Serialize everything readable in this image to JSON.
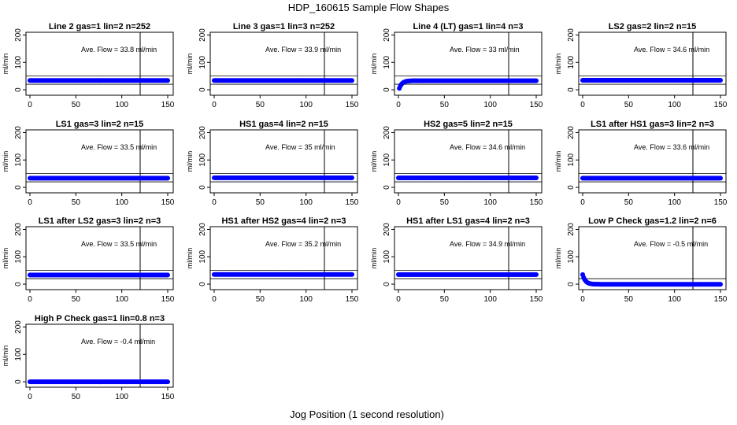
{
  "title": "HDP_160615  Sample Flow Shapes",
  "xlabel": "Jog Position (1 second resolution)",
  "colors": {
    "point": "#0000ff",
    "line": "#000000"
  },
  "chart_data": [
    {
      "type": "scatter",
      "title": "Line 2 gas=1 lin=2 n=252",
      "ylabel": "ml/min",
      "annotation": "Ave. Flow =  33.8   ml/min",
      "xlim": [
        0,
        150
      ],
      "ylim": [
        -20,
        210
      ],
      "xticks": [
        0,
        50,
        100,
        150
      ],
      "yticks": [
        0,
        100,
        200
      ],
      "vline_x": 120,
      "hline_y": [
        50,
        20
      ],
      "start_value": 33.8,
      "end_value": 33.8,
      "x_start": 0,
      "x_end": 150
    },
    {
      "type": "scatter",
      "title": "Line 3 gas=1 lin=3 n=252",
      "ylabel": "ml/min",
      "annotation": "Ave. Flow =  33.9   ml/min",
      "xlim": [
        0,
        150
      ],
      "ylim": [
        -20,
        210
      ],
      "xticks": [
        0,
        50,
        100,
        150
      ],
      "yticks": [
        0,
        100,
        200
      ],
      "vline_x": 120,
      "hline_y": [
        50,
        20
      ],
      "start_value": 33.9,
      "end_value": 33.9,
      "x_start": 0,
      "x_end": 150
    },
    {
      "type": "scatter",
      "title": "Line 4 (LT) gas=1 lin=4 n=3",
      "ylabel": "ml/min",
      "annotation": "Ave. Flow =  33   ml/min",
      "xlim": [
        0,
        150
      ],
      "ylim": [
        -20,
        210
      ],
      "xticks": [
        0,
        50,
        100,
        150
      ],
      "yticks": [
        0,
        100,
        200
      ],
      "vline_x": 120,
      "hline_y": [
        50,
        20
      ],
      "start_value": 5,
      "end_value": 33,
      "x_start": 1,
      "x_end": 150
    },
    {
      "type": "scatter",
      "title": "LS2 gas=2 lin=2 n=15",
      "ylabel": "ml/min",
      "annotation": "Ave. Flow =  34.6   ml/min",
      "xlim": [
        0,
        150
      ],
      "ylim": [
        -20,
        210
      ],
      "xticks": [
        0,
        50,
        100,
        150
      ],
      "yticks": [
        0,
        100,
        200
      ],
      "vline_x": 120,
      "hline_y": [
        50,
        20
      ],
      "start_value": 34.6,
      "end_value": 34.6,
      "x_start": 0,
      "x_end": 150
    },
    {
      "type": "scatter",
      "title": "LS1 gas=3 lin=2 n=15",
      "ylabel": "ml/min",
      "annotation": "Ave. Flow =  33.5   ml/min",
      "xlim": [
        0,
        150
      ],
      "ylim": [
        -20,
        210
      ],
      "xticks": [
        0,
        50,
        100,
        150
      ],
      "yticks": [
        0,
        100,
        200
      ],
      "vline_x": 120,
      "hline_y": [
        50,
        20
      ],
      "start_value": 33.5,
      "end_value": 33.5,
      "x_start": 0,
      "x_end": 150
    },
    {
      "type": "scatter",
      "title": "HS1 gas=4 lin=2 n=15",
      "ylabel": "ml/min",
      "annotation": "Ave. Flow =  35   ml/min",
      "xlim": [
        0,
        150
      ],
      "ylim": [
        -20,
        210
      ],
      "xticks": [
        0,
        50,
        100,
        150
      ],
      "yticks": [
        0,
        100,
        200
      ],
      "vline_x": 120,
      "hline_y": [
        50,
        20
      ],
      "start_value": 35,
      "end_value": 35,
      "x_start": 0,
      "x_end": 150
    },
    {
      "type": "scatter",
      "title": "HS2 gas=5 lin=2 n=15",
      "ylabel": "ml/min",
      "annotation": "Ave. Flow =  34.6   ml/min",
      "xlim": [
        0,
        150
      ],
      "ylim": [
        -20,
        210
      ],
      "xticks": [
        0,
        50,
        100,
        150
      ],
      "yticks": [
        0,
        100,
        200
      ],
      "vline_x": 120,
      "hline_y": [
        50,
        20
      ],
      "start_value": 34.6,
      "end_value": 34.6,
      "x_start": 0,
      "x_end": 150
    },
    {
      "type": "scatter",
      "title": "LS1 after HS1 gas=3 lin=2 n=3",
      "ylabel": "ml/min",
      "annotation": "Ave. Flow =  33.6   ml/min",
      "xlim": [
        0,
        150
      ],
      "ylim": [
        -20,
        210
      ],
      "xticks": [
        0,
        50,
        100,
        150
      ],
      "yticks": [
        0,
        100,
        200
      ],
      "vline_x": 120,
      "hline_y": [
        50,
        20
      ],
      "start_value": 33.6,
      "end_value": 33.6,
      "x_start": 0,
      "x_end": 150
    },
    {
      "type": "scatter",
      "title": "LS1 after LS2 gas=3 lin=2 n=3",
      "ylabel": "ml/min",
      "annotation": "Ave. Flow =  33.5   ml/min",
      "xlim": [
        0,
        150
      ],
      "ylim": [
        -20,
        210
      ],
      "xticks": [
        0,
        50,
        100,
        150
      ],
      "yticks": [
        0,
        100,
        200
      ],
      "vline_x": 120,
      "hline_y": [
        50,
        20
      ],
      "start_value": 33.5,
      "end_value": 33.5,
      "x_start": 0,
      "x_end": 150
    },
    {
      "type": "scatter",
      "title": "HS1 after HS2 gas=4 lin=2 n=3",
      "ylabel": "ml/min",
      "annotation": "Ave. Flow =  35.2   ml/min",
      "xlim": [
        0,
        150
      ],
      "ylim": [
        -20,
        210
      ],
      "xticks": [
        0,
        50,
        100,
        150
      ],
      "yticks": [
        0,
        100,
        200
      ],
      "vline_x": 120,
      "hline_y": [
        50,
        20
      ],
      "start_value": 35.2,
      "end_value": 35.2,
      "x_start": 0,
      "x_end": 150
    },
    {
      "type": "scatter",
      "title": "HS1 after LS1 gas=4 lin=2 n=3",
      "ylabel": "ml/min",
      "annotation": "Ave. Flow =  34.9   ml/min",
      "xlim": [
        0,
        150
      ],
      "ylim": [
        -20,
        210
      ],
      "xticks": [
        0,
        50,
        100,
        150
      ],
      "yticks": [
        0,
        100,
        200
      ],
      "vline_x": 120,
      "hline_y": [
        50,
        20
      ],
      "start_value": 34.9,
      "end_value": 34.9,
      "x_start": 0,
      "x_end": 150
    },
    {
      "type": "scatter",
      "title": "Low P Check gas=1.2 lin=2 n=6",
      "ylabel": "ml/min",
      "annotation": "Ave. Flow =  -0.5   ml/min",
      "xlim": [
        0,
        150
      ],
      "ylim": [
        -20,
        210
      ],
      "xticks": [
        0,
        50,
        100,
        150
      ],
      "yticks": [
        0,
        100,
        200
      ],
      "vline_x": 120,
      "hline_y": [
        20,
        -20
      ],
      "start_value": 35,
      "end_value": -0.5,
      "x_start": 0,
      "x_end": 150
    },
    {
      "type": "scatter",
      "title": "High P Check gas=1 lin=0.8 n=3",
      "ylabel": "ml/min",
      "annotation": "Ave. Flow =  -0.4   ml/min",
      "xlim": [
        0,
        150
      ],
      "ylim": [
        -20,
        210
      ],
      "xticks": [
        0,
        50,
        100,
        150
      ],
      "yticks": [
        0,
        100,
        200
      ],
      "vline_x": 120,
      "hline_y": [],
      "start_value": -0.4,
      "end_value": -0.4,
      "x_start": 0,
      "x_end": 150
    }
  ]
}
